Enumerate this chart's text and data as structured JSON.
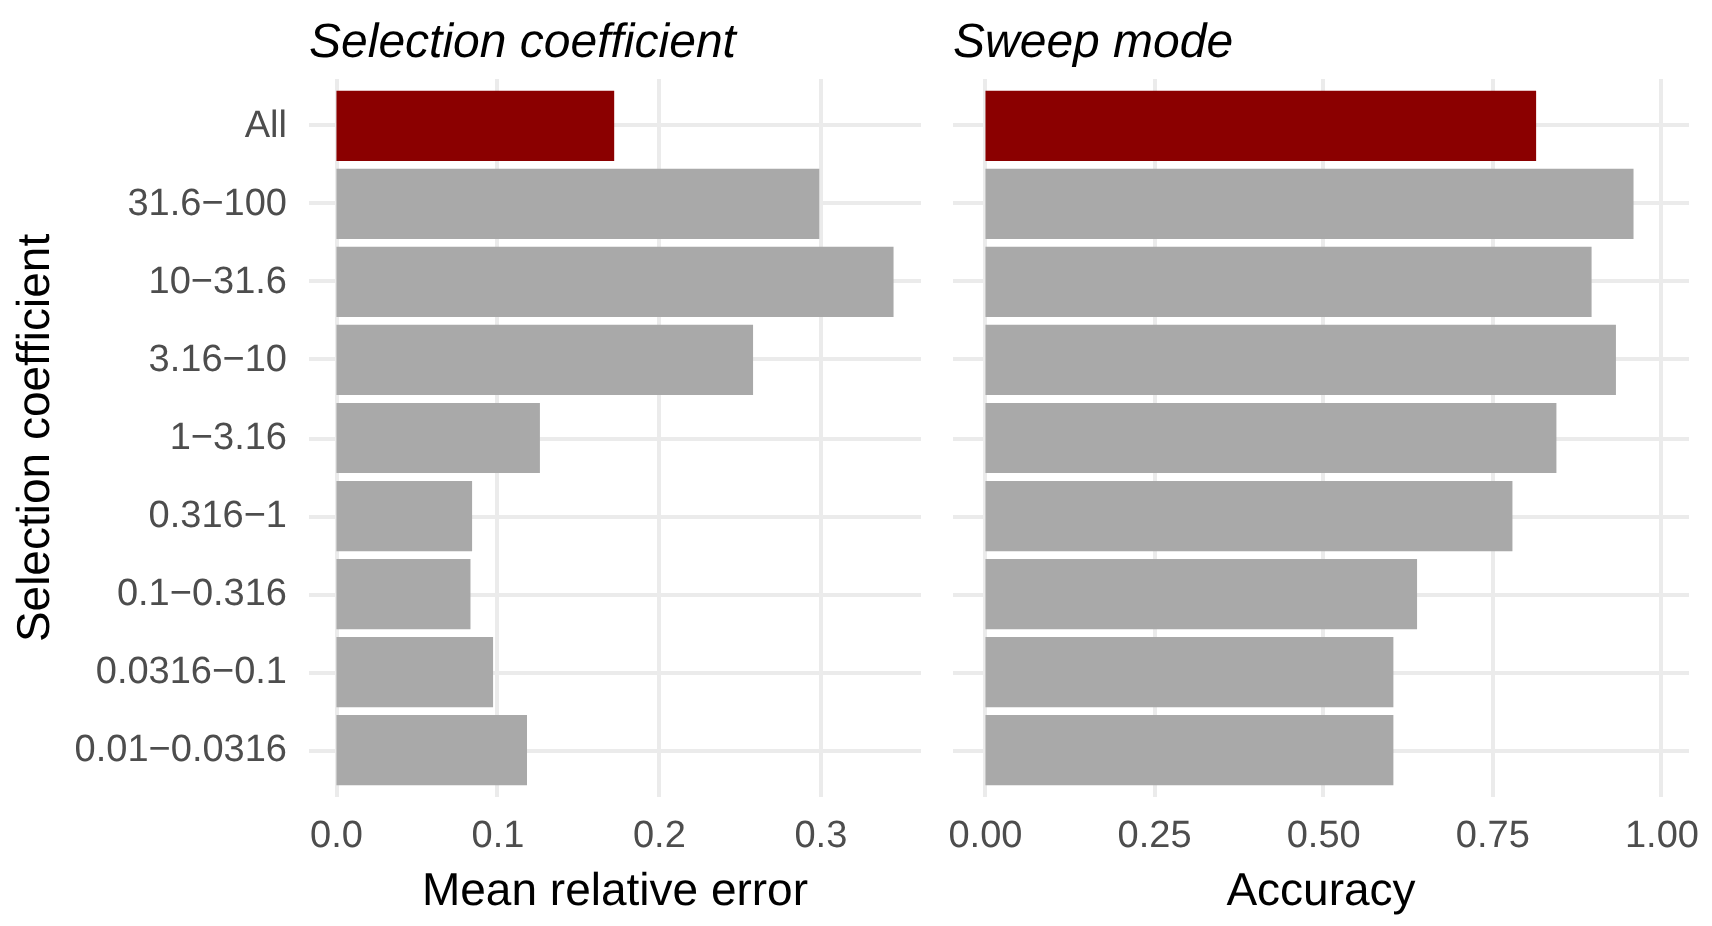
{
  "chart_data": [
    {
      "type": "bar",
      "orientation": "horizontal",
      "title": "Selection coefficient",
      "xlabel": "Mean relative error",
      "ylabel": "Selection coefficient",
      "categories": [
        "All",
        "31.6−100",
        "10−31.6",
        "3.16−10",
        "1−3.16",
        "0.316−1",
        "0.1−0.316",
        "0.0316−0.1",
        "0.01−0.0316"
      ],
      "values": [
        0.172,
        0.299,
        0.345,
        0.258,
        0.126,
        0.084,
        0.083,
        0.097,
        0.118
      ],
      "colors": [
        "#8b0000",
        "#a9a9a9",
        "#a9a9a9",
        "#a9a9a9",
        "#a9a9a9",
        "#a9a9a9",
        "#a9a9a9",
        "#a9a9a9",
        "#a9a9a9"
      ],
      "xlim": [
        -0.017,
        0.362
      ],
      "xticks": [
        {
          "value": 0,
          "label": "0.0"
        },
        0.1,
        0.2,
        0.3
      ],
      "grid": true
    },
    {
      "type": "bar",
      "orientation": "horizontal",
      "title": "Sweep mode",
      "xlabel": "Accuracy",
      "categories": [
        null,
        null,
        null,
        null,
        null,
        null,
        null,
        null,
        null
      ],
      "values": [
        0.814,
        0.958,
        0.896,
        0.932,
        0.844,
        0.779,
        0.638,
        0.603,
        0.603
      ],
      "colors": [
        "#8b0000",
        "#a9a9a9",
        "#a9a9a9",
        "#a9a9a9",
        "#a9a9a9",
        "#a9a9a9",
        "#a9a9a9",
        "#a9a9a9",
        "#a9a9a9"
      ],
      "xlim": [
        -0.048,
        1.04
      ],
      "xticks": [
        {
          "value": 0,
          "label": "0.00"
        },
        0.25,
        {
          "value": 0.5,
          "label": "0.50"
        },
        0.75,
        {
          "value": 1,
          "label": "1.00"
        }
      ],
      "grid": true
    }
  ]
}
